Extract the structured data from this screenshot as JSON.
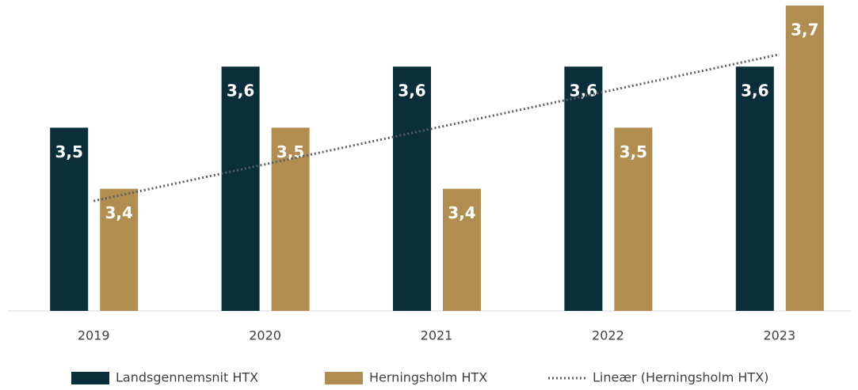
{
  "chart_data": {
    "type": "bar",
    "categories": [
      "2019",
      "2020",
      "2021",
      "2022",
      "2023"
    ],
    "series": [
      {
        "name": "Landsgennemsnit HTX",
        "color": "#0b2e3b",
        "values": [
          3.5,
          3.6,
          3.6,
          3.6,
          3.6
        ],
        "value_labels": [
          "3,5",
          "3,6",
          "3,6",
          "3,6",
          "3,6"
        ]
      },
      {
        "name": "Herningsholm HTX",
        "color": "#b18e50",
        "values": [
          3.4,
          3.5,
          3.4,
          3.5,
          3.7
        ],
        "value_labels": [
          "3,4",
          "3,5",
          "3,4",
          "3,5",
          "3,7"
        ]
      }
    ],
    "trendline": {
      "name": "Lineær (Herningsholm HTX)",
      "series": 1,
      "kind": "linear",
      "color": "#5a5f66"
    },
    "ylim": [
      3.2,
      3.7
    ],
    "legend": "bottom"
  }
}
